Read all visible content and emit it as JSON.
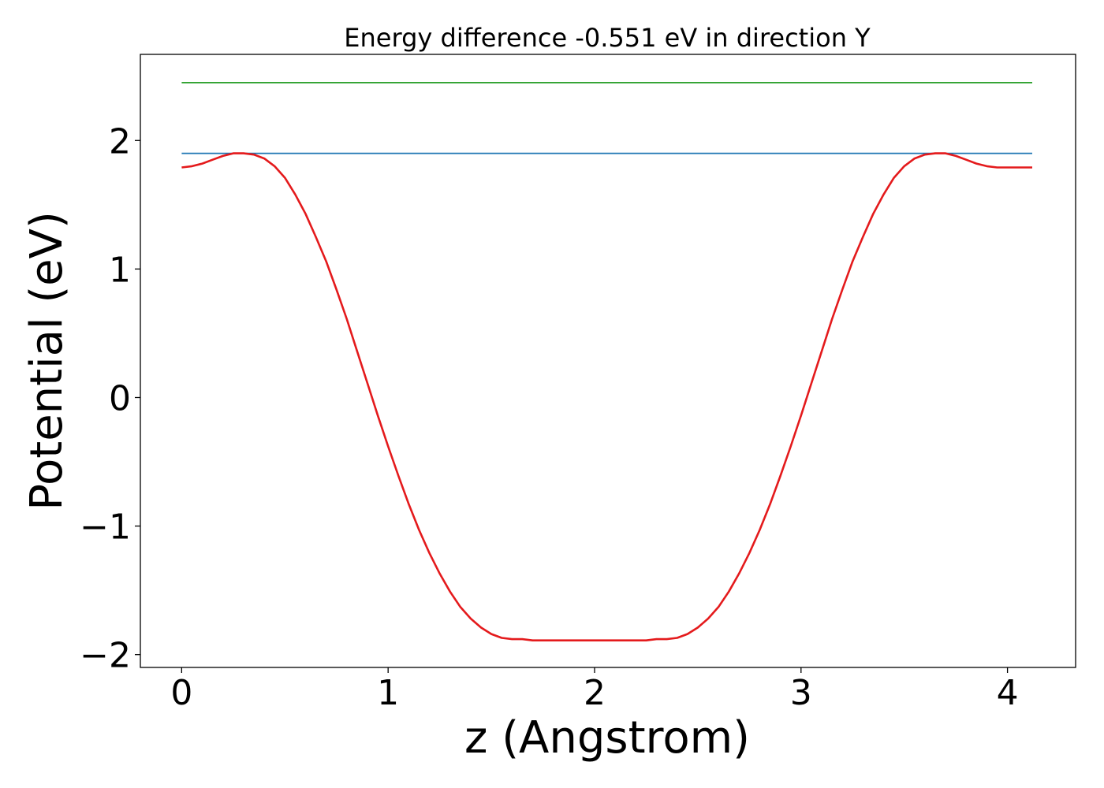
{
  "chart_data": {
    "type": "line",
    "title": "Energy difference -0.551 eV in direction Y",
    "xlabel": "z (Angstrom)",
    "ylabel": "Potential (eV)",
    "xlim": [
      -0.2,
      4.33
    ],
    "ylim": [
      -2.1,
      2.67
    ],
    "xticks": [
      0,
      1,
      2,
      3,
      4
    ],
    "xtick_labels": [
      "0",
      "1",
      "2",
      "3",
      "4"
    ],
    "yticks": [
      -2,
      -1,
      0,
      1,
      2
    ],
    "ytick_labels": [
      "−2",
      "−1",
      "0",
      "1",
      "2"
    ],
    "grid": false,
    "series": [
      {
        "color": "#2ca02c",
        "x": [
          0,
          4.12
        ],
        "y": [
          2.45,
          2.45
        ]
      },
      {
        "color": "#1f77b4",
        "x": [
          0,
          4.12
        ],
        "y": [
          1.9,
          1.9
        ]
      },
      {
        "color": "#e41a1c",
        "x": [
          0,
          0.05,
          0.1,
          0.15,
          0.2,
          0.25,
          0.3,
          0.35,
          0.4,
          0.45,
          0.5,
          0.55,
          0.6,
          0.65,
          0.7,
          0.75,
          0.8,
          0.85,
          0.9,
          0.95,
          1.0,
          1.05,
          1.1,
          1.15,
          1.2,
          1.25,
          1.3,
          1.35,
          1.4,
          1.45,
          1.5,
          1.55,
          1.6,
          1.65,
          1.7,
          1.75,
          1.8,
          1.85,
          1.9,
          1.95,
          2.0,
          2.05,
          2.1,
          2.15,
          2.2,
          2.25,
          2.3,
          2.35,
          2.4,
          2.45,
          2.5,
          2.55,
          2.6,
          2.65,
          2.7,
          2.75,
          2.8,
          2.85,
          2.9,
          2.95,
          3.0,
          3.05,
          3.1,
          3.15,
          3.2,
          3.25,
          3.3,
          3.35,
          3.4,
          3.45,
          3.5,
          3.55,
          3.6,
          3.65,
          3.7,
          3.75,
          3.8,
          3.85,
          3.9,
          3.95,
          4.0,
          4.05,
          4.12
        ],
        "y": [
          1.79,
          1.8,
          1.82,
          1.85,
          1.88,
          1.9,
          1.9,
          1.89,
          1.86,
          1.8,
          1.71,
          1.58,
          1.43,
          1.25,
          1.06,
          0.84,
          0.61,
          0.36,
          0.11,
          -0.14,
          -0.38,
          -0.61,
          -0.83,
          -1.03,
          -1.21,
          -1.37,
          -1.51,
          -1.63,
          -1.72,
          -1.79,
          -1.84,
          -1.87,
          -1.88,
          -1.88,
          -1.89,
          -1.89,
          -1.89,
          -1.89,
          -1.89,
          -1.89,
          -1.89,
          -1.89,
          -1.89,
          -1.89,
          -1.89,
          -1.89,
          -1.88,
          -1.88,
          -1.87,
          -1.84,
          -1.79,
          -1.72,
          -1.63,
          -1.51,
          -1.37,
          -1.21,
          -1.03,
          -0.83,
          -0.61,
          -0.38,
          -0.14,
          0.11,
          0.36,
          0.61,
          0.84,
          1.06,
          1.25,
          1.43,
          1.58,
          1.71,
          1.8,
          1.86,
          1.89,
          1.9,
          1.9,
          1.88,
          1.85,
          1.82,
          1.8,
          1.79,
          1.79,
          1.79,
          1.79
        ]
      }
    ]
  }
}
